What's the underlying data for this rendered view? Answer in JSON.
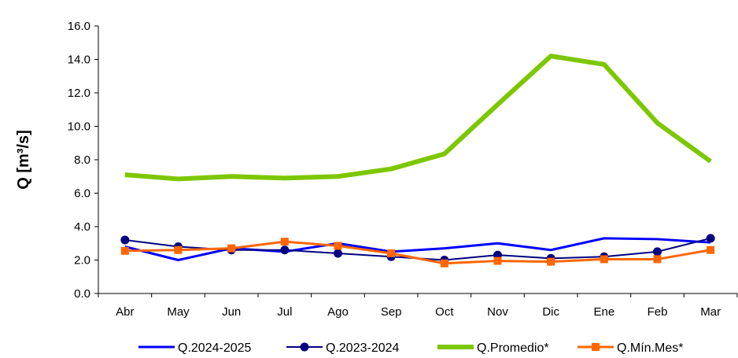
{
  "chart_data": {
    "type": "line",
    "ylabel": "Q [m³/s]",
    "ylim": [
      0,
      16
    ],
    "yticks": [
      "0.0",
      "2.0",
      "4.0",
      "6.0",
      "8.0",
      "10.0",
      "12.0",
      "14.0",
      "16.0"
    ],
    "categories": [
      "Abr",
      "May",
      "Jun",
      "Jul",
      "Ago",
      "Sep",
      "Oct",
      "Nov",
      "Dic",
      "Ene",
      "Feb",
      "Mar"
    ],
    "grid": false,
    "legend_position": "bottom",
    "series": [
      {
        "name": "Q.2024-2025",
        "color": "#0000FF",
        "marker": "none",
        "values": [
          2.8,
          2.0,
          2.7,
          2.5,
          3.0,
          2.5,
          2.7,
          3.0,
          2.6,
          3.3,
          3.25,
          3.05
        ]
      },
      {
        "name": "Q.2023-2024",
        "color": "#000080",
        "marker": "circle",
        "values": [
          3.2,
          2.8,
          2.6,
          2.6,
          2.4,
          2.2,
          2.0,
          2.3,
          2.1,
          2.2,
          2.5,
          3.3
        ]
      },
      {
        "name": "Q.Promedio*",
        "color": "#7DC700",
        "marker": "none",
        "values": [
          7.1,
          6.85,
          7.0,
          6.9,
          7.0,
          7.45,
          8.35,
          11.3,
          14.2,
          13.7,
          10.2,
          7.9
        ]
      },
      {
        "name": "Q.Mín.Mes*",
        "color": "#FF6600",
        "marker": "square",
        "values": [
          2.55,
          2.6,
          2.7,
          3.1,
          2.85,
          2.4,
          1.8,
          1.95,
          1.9,
          2.05,
          2.05,
          2.6
        ]
      }
    ]
  }
}
